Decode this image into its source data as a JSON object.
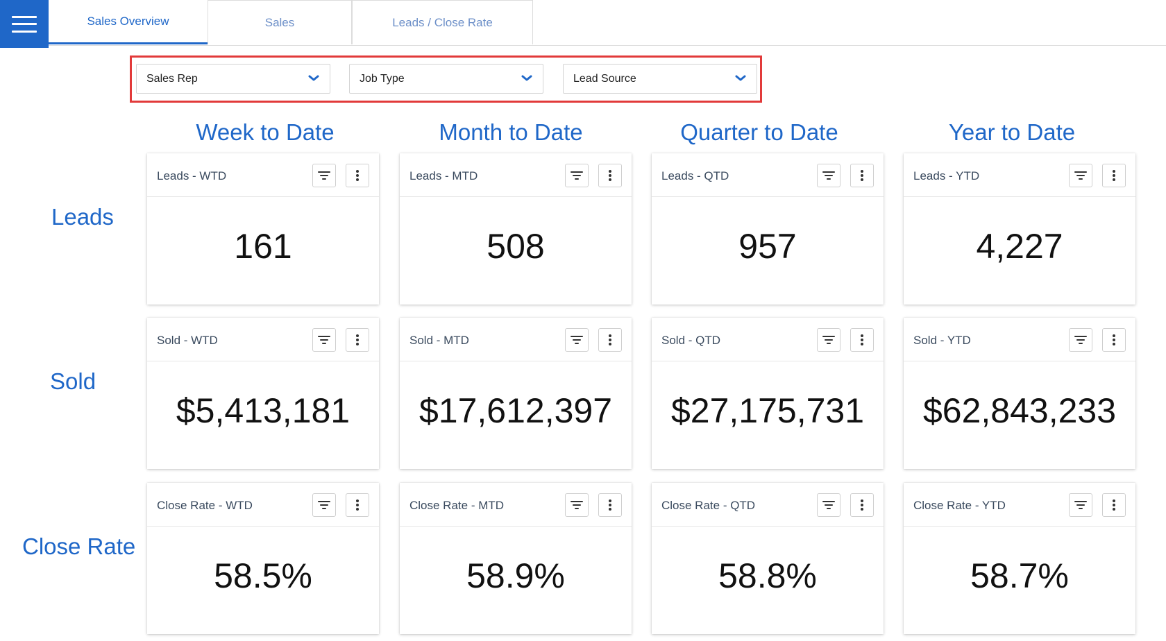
{
  "tabs": [
    {
      "label": "Sales Overview",
      "active": true
    },
    {
      "label": "Sales",
      "active": false
    },
    {
      "label": "Leads / Close Rate",
      "active": false
    }
  ],
  "filters": [
    {
      "label": "Sales Rep"
    },
    {
      "label": "Job Type"
    },
    {
      "label": "Lead Source"
    }
  ],
  "columns": [
    "Week to Date",
    "Month to Date",
    "Quarter to Date",
    "Year to Date"
  ],
  "rows": [
    "Leads",
    "Sold",
    "Close Rate"
  ],
  "cards": [
    [
      {
        "title": "Leads - WTD",
        "value": "161"
      },
      {
        "title": "Leads - MTD",
        "value": "508"
      },
      {
        "title": "Leads - QTD",
        "value": "957"
      },
      {
        "title": "Leads - YTD",
        "value": "4,227"
      }
    ],
    [
      {
        "title": "Sold - WTD",
        "value": "$5,413,181"
      },
      {
        "title": "Sold - MTD",
        "value": "$17,612,397"
      },
      {
        "title": "Sold - QTD",
        "value": "$27,175,731"
      },
      {
        "title": "Sold - YTD",
        "value": "$62,843,233"
      }
    ],
    [
      {
        "title": "Close Rate - WTD",
        "value": "58.5%"
      },
      {
        "title": "Close Rate - MTD",
        "value": "58.9%"
      },
      {
        "title": "Close Rate - QTD",
        "value": "58.8%"
      },
      {
        "title": "Close Rate - YTD",
        "value": "58.7%"
      }
    ]
  ],
  "colors": {
    "accent": "#1f67c8",
    "inactive_tab": "#6c8fc8",
    "highlight_frame": "#e23a3a"
  }
}
